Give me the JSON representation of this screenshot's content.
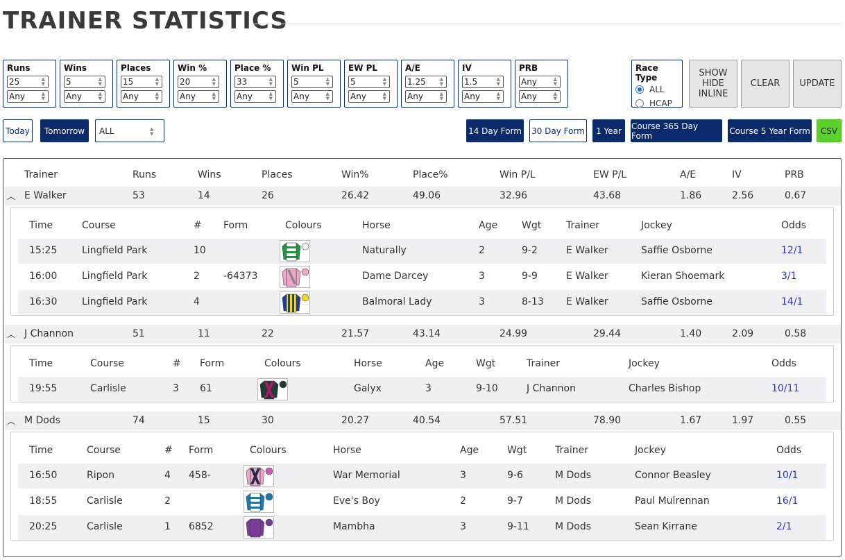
{
  "title": "TRAINER STATISTICS",
  "filters": [
    {
      "label": "Runs",
      "v1": "25",
      "v2": "Any"
    },
    {
      "label": "Wins",
      "v1": "5",
      "v2": "Any"
    },
    {
      "label": "Places",
      "v1": "15",
      "v2": "Any"
    },
    {
      "label": "Win %",
      "v1": "20",
      "v2": "Any"
    },
    {
      "label": "Place %",
      "v1": "33",
      "v2": "Any"
    },
    {
      "label": "Win PL",
      "v1": "5",
      "v2": "Any"
    },
    {
      "label": "EW PL",
      "v1": "5",
      "v2": "Any"
    },
    {
      "label": "A/E",
      "v1": "1.25",
      "v2": "Any"
    },
    {
      "label": "IV",
      "v1": "1.5",
      "v2": "Any"
    },
    {
      "label": "PRB",
      "v1": "Any",
      "v2": "Any"
    }
  ],
  "race_type": {
    "label": "Race Type",
    "options": [
      "ALL",
      "HCAP"
    ],
    "selected": "ALL"
  },
  "buttons": {
    "show_hide_1": "SHOW",
    "show_hide_2": "HIDE",
    "show_hide_3": "INLINE",
    "clear": "CLEAR",
    "update": "UPDATE"
  },
  "day_buttons": {
    "today": "Today",
    "tomorrow": "Tomorrow",
    "select": "ALL"
  },
  "form_buttons": {
    "d14": "14 Day Form",
    "d30": "30 Day Form",
    "y1": "1 Year",
    "c365": "Course 365 Day Form",
    "c5y": "Course 5 Year Form",
    "csv": "CSV"
  },
  "headers": [
    "Trainer",
    "Runs",
    "Wins",
    "Places",
    "Win%",
    "Place%",
    "Win P/L",
    "EW P/L",
    "A/E",
    "IV",
    "PRB"
  ],
  "sub_headers": [
    "Time",
    "Course",
    "#",
    "Form",
    "Colours",
    "Horse",
    "Age",
    "Wgt",
    "Trainer",
    "Jockey",
    "Odds"
  ],
  "trainers": [
    {
      "stats": [
        "E Walker",
        "53",
        "14",
        "26",
        "26.42",
        "49.06",
        "32.96",
        "43.68",
        "1.86",
        "2.56",
        "0.67"
      ],
      "runners": [
        {
          "time": "15:25",
          "course": "Lingfield Park",
          "num": "10",
          "form": "",
          "silk": "green-white-hoops",
          "horse": "Naturally",
          "age": "2",
          "wgt": "9-2",
          "trainer": "E Walker",
          "jockey": "Saffie Osborne",
          "odds": "12/1"
        },
        {
          "time": "16:00",
          "course": "Lingfield Park",
          "num": "2",
          "form": "-64373",
          "silk": "pink-grey-sash",
          "horse": "Dame Darcey",
          "age": "3",
          "wgt": "9-9",
          "trainer": "E Walker",
          "jockey": "Kieran Shoemark",
          "odds": "3/1"
        },
        {
          "time": "16:30",
          "course": "Lingfield Park",
          "num": "4",
          "form": "",
          "silk": "blue-yellow-stripes",
          "horse": "Balmoral Lady",
          "age": "3",
          "wgt": "8-13",
          "trainer": "E Walker",
          "jockey": "Saffie Osborne",
          "odds": "14/1"
        }
      ]
    },
    {
      "stats": [
        "J Channon",
        "51",
        "11",
        "22",
        "21.57",
        "43.14",
        "24.99",
        "29.44",
        "1.40",
        "2.09",
        "0.58"
      ],
      "runners": [
        {
          "time": "19:55",
          "course": "Carlisle",
          "num": "3",
          "form": "61",
          "silk": "dark-green-magenta",
          "horse": "Galyx",
          "age": "3",
          "wgt": "9-10",
          "trainer": "J Channon",
          "jockey": "Charles Bishop",
          "odds": "10/11"
        }
      ]
    },
    {
      "stats": [
        "M Dods",
        "74",
        "15",
        "30",
        "20.27",
        "40.54",
        "57.51",
        "78.90",
        "1.67",
        "1.97",
        "0.55"
      ],
      "runners": [
        {
          "time": "16:50",
          "course": "Ripon",
          "num": "4",
          "form": "458-",
          "silk": "pink-navy-cross",
          "horse": "War Memorial",
          "age": "3",
          "wgt": "9-6",
          "trainer": "M Dods",
          "jockey": "Connor Beasley",
          "odds": "10/1"
        },
        {
          "time": "18:55",
          "course": "Carlisle",
          "num": "2",
          "form": "",
          "silk": "blue-white-hoops",
          "horse": "Eve's Boy",
          "age": "2",
          "wgt": "9-7",
          "trainer": "M Dods",
          "jockey": "Paul Mulrennan",
          "odds": "16/1"
        },
        {
          "time": "20:25",
          "course": "Carlisle",
          "num": "1",
          "form": "6852",
          "silk": "purple",
          "horse": "Mambha",
          "age": "3",
          "wgt": "9-11",
          "trainer": "M Dods",
          "jockey": "Sean Kirrane",
          "odds": "2/1"
        }
      ]
    }
  ]
}
